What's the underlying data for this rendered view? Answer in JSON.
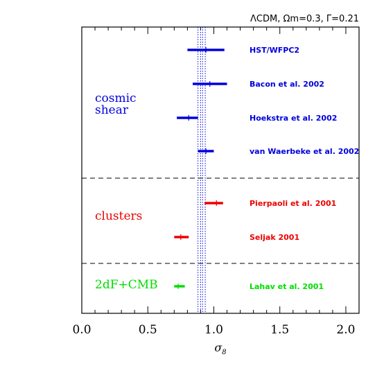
{
  "chart_data": {
    "type": "scatter",
    "title": "ΛCDM, Ωm=0.3, Γ=0.21",
    "xlabel": "σ8",
    "xlim": [
      0.0,
      2.1
    ],
    "x_ticks": [
      "0.0",
      "0.5",
      "1.0",
      "1.5",
      "2.0"
    ],
    "reference_band": {
      "values": [
        0.88,
        0.9,
        0.915,
        0.935
      ],
      "style": "dotted",
      "color": "#0000dd"
    },
    "groups": [
      {
        "label": "cosmic\nshear",
        "color": "#0000dd",
        "measurements": [
          {
            "name": "HST/WFPC2",
            "value": 0.94,
            "low": 0.8,
            "high": 1.08
          },
          {
            "name": "Bacon et al. 2002",
            "value": 0.97,
            "low": 0.84,
            "high": 1.1
          },
          {
            "name": "Hoekstra et al. 2002",
            "value": 0.81,
            "low": 0.72,
            "high": 0.88
          },
          {
            "name": "van Waerbeke et al. 2002",
            "value": 0.94,
            "low": 0.88,
            "high": 1.0
          }
        ]
      },
      {
        "label": "clusters",
        "color": "#ee0000",
        "measurements": [
          {
            "name": "Pierpaoli et al. 2001",
            "value": 1.02,
            "low": 0.93,
            "high": 1.07
          },
          {
            "name": "Seljak 2001",
            "value": 0.75,
            "low": 0.7,
            "high": 0.81
          }
        ]
      },
      {
        "label": "2dF+CMB",
        "color": "#00dd00",
        "measurements": [
          {
            "name": "Lahav et al. 2001",
            "value": 0.73,
            "low": 0.7,
            "high": 0.78
          }
        ]
      }
    ]
  }
}
